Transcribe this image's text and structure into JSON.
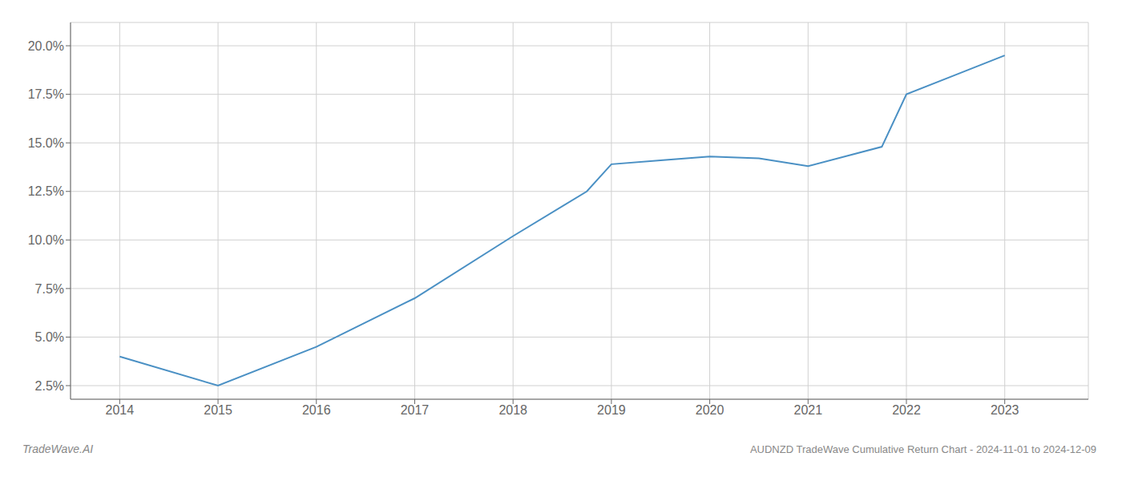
{
  "chart_data": {
    "type": "line",
    "title": "AUDNZD TradeWave Cumulative Return Chart - 2024-11-01 to 2024-12-09",
    "annotations": [
      "TradeWave.AI"
    ],
    "x": [
      2014.0,
      2015.0,
      2016.0,
      2017.0,
      2018.0,
      2018.75,
      2019.0,
      2019.5,
      2020.0,
      2020.5,
      2021.0,
      2021.75,
      2022.0,
      2022.5,
      2023.0
    ],
    "values": [
      4.0,
      2.5,
      4.5,
      7.0,
      10.2,
      12.5,
      13.9,
      14.1,
      14.3,
      14.2,
      13.8,
      14.8,
      17.5,
      18.5,
      19.5
    ],
    "color": "#4a90c4",
    "xlim": [
      2013.5,
      2023.85
    ],
    "ylim": [
      1.8,
      21.2
    ],
    "xticks": [
      2014,
      2015,
      2016,
      2017,
      2018,
      2019,
      2020,
      2021,
      2022,
      2023
    ],
    "yticks": [
      {
        "value": 2.5,
        "label": "2.5%"
      },
      {
        "value": 5.0,
        "label": "5.0%"
      },
      {
        "value": 7.5,
        "label": "7.5%"
      },
      {
        "value": 10.0,
        "label": "10.0%"
      },
      {
        "value": 12.5,
        "label": "12.5%"
      },
      {
        "value": 15.0,
        "label": "15.0%"
      },
      {
        "value": 17.5,
        "label": "17.5%"
      },
      {
        "value": 20.0,
        "label": "20.0%"
      }
    ],
    "grid": true
  }
}
